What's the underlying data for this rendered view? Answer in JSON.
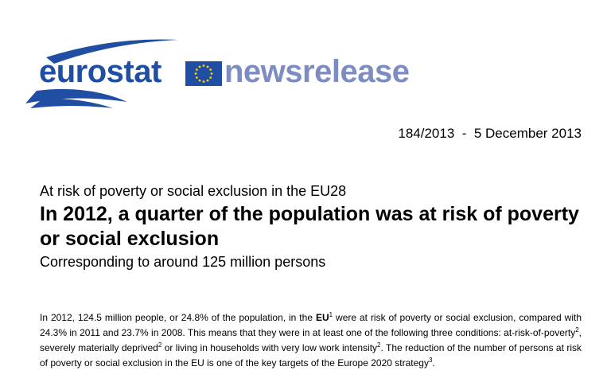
{
  "logo": {
    "word1": "eurostat",
    "word2": "newsrelease",
    "colors": {
      "primary": "#1f4ea3",
      "secondary": "#7e8dc1",
      "stars": "#ffd200"
    }
  },
  "release": {
    "ref_date": "184/2013  -  5 December 2013"
  },
  "title": {
    "kicker": "At risk of poverty or social exclusion in the EU28",
    "headline": "In 2012, a quarter of the population was at risk of poverty or social exclusion",
    "subhead": "Corresponding to around 125 million persons"
  },
  "body": {
    "s1": "In 2012, 124.5 million people, or 24.8% of the population, in the ",
    "eu": "EU",
    "fn1": "1",
    "s2": " were at risk of poverty or social exclusion, compared with 24.3% in 2011 and 23.7% in 2008. This means that they were in at least one of the following three conditions: at-risk-of-poverty",
    "fn2a": "2",
    "s3": ", severely materially deprived",
    "fn2b": "2",
    "s4": " or living in households with very low work intensity",
    "fn2c": "2",
    "s5": ". The reduction of the number of persons at risk of poverty or social exclusion in the EU is one of the key targets of the Europe 2020 strategy",
    "fn3": "3",
    "s6": "."
  }
}
